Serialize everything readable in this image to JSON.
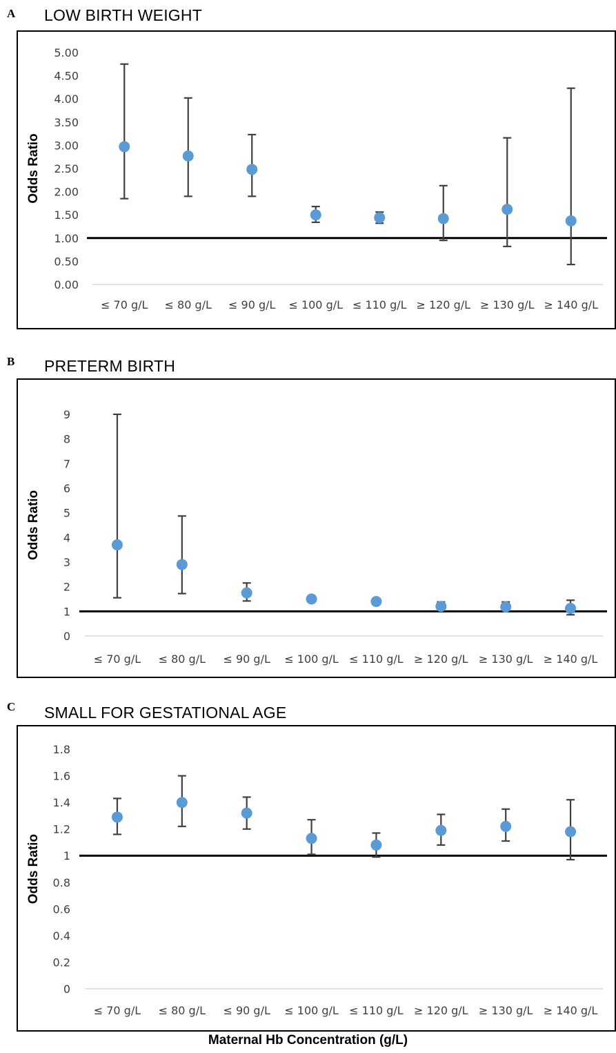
{
  "figure": {
    "xlabel": "Maternal Hb Concentration (g/L)"
  },
  "chart_data": [
    {
      "type": "scatter",
      "panel": "A",
      "title": "LOW BIRTH WEIGHT",
      "ylabel": "Odds Ratio",
      "ylim": [
        0,
        5
      ],
      "yticks": [
        "0.00",
        "0.50",
        "1.00",
        "1.50",
        "2.00",
        "2.50",
        "3.00",
        "3.50",
        "4.00",
        "4.50",
        "5.00"
      ],
      "categories": [
        "≤ 70 g/L",
        "≤ 80 g/L",
        "≤ 90 g/L",
        "≤ 100 g/L",
        "≤ 110 g/L",
        "≥ 120 g/L",
        "≥ 130 g/L",
        "≥ 140 g/L"
      ],
      "series": [
        {
          "values": [
            2.97,
            2.77,
            2.48,
            1.5,
            1.44,
            1.42,
            1.62,
            1.37
          ],
          "lower": [
            1.85,
            1.9,
            1.9,
            1.34,
            1.32,
            0.95,
            0.82,
            0.43
          ],
          "upper": [
            4.75,
            4.02,
            3.23,
            1.68,
            1.56,
            2.13,
            3.16,
            4.23
          ]
        }
      ],
      "reference_line": 1,
      "grid": false,
      "colors": {
        "marker": "#5b9bd5",
        "errorbar": "#404040",
        "reference": "#000000"
      }
    },
    {
      "type": "scatter",
      "panel": "B",
      "title": "PRETERM BIRTH",
      "ylabel": "Odds Ratio",
      "ylim": [
        0,
        9
      ],
      "yticks": [
        "0",
        "1",
        "2",
        "3",
        "4",
        "5",
        "6",
        "7",
        "8",
        "9"
      ],
      "categories": [
        "≤ 70 g/L",
        "≤ 80 g/L",
        "≤ 90 g/L",
        "≤ 100 g/L",
        "≤ 110 g/L",
        "≥ 120 g/L",
        "≥ 130 g/L",
        "≥ 140 g/L"
      ],
      "series": [
        {
          "values": [
            3.7,
            2.9,
            1.75,
            1.5,
            1.4,
            1.2,
            1.18,
            1.12
          ],
          "lower": [
            1.55,
            1.72,
            1.42,
            1.4,
            1.32,
            1.13,
            1.06,
            0.86
          ],
          "upper": [
            9.0,
            4.87,
            2.15,
            1.62,
            1.48,
            1.38,
            1.38,
            1.45
          ]
        }
      ],
      "reference_line": 1,
      "grid": false,
      "colors": {
        "marker": "#5b9bd5",
        "errorbar": "#404040",
        "reference": "#000000"
      }
    },
    {
      "type": "scatter",
      "panel": "C",
      "title": "SMALL FOR GESTATIONAL AGE",
      "ylabel": "Odds Ratio",
      "ylim": [
        0,
        1.8
      ],
      "yticks": [
        "0",
        "0.2",
        "0.4",
        "0.6",
        "0.8",
        "1",
        "1.2",
        "1.4",
        "1.6",
        "1.8"
      ],
      "categories": [
        "≤ 70 g/L",
        "≤ 80 g/L",
        "≤ 90 g/L",
        "≤ 100 g/L",
        "≤ 110 g/L",
        "≥ 120 g/L",
        "≥ 130 g/L",
        "≥ 140 g/L"
      ],
      "series": [
        {
          "values": [
            1.29,
            1.4,
            1.32,
            1.13,
            1.08,
            1.19,
            1.22,
            1.18
          ],
          "lower": [
            1.16,
            1.22,
            1.2,
            1.01,
            0.99,
            1.08,
            1.11,
            0.97
          ],
          "upper": [
            1.43,
            1.6,
            1.44,
            1.27,
            1.17,
            1.31,
            1.35,
            1.42
          ]
        }
      ],
      "reference_line": 1,
      "grid": false,
      "colors": {
        "marker": "#5b9bd5",
        "errorbar": "#404040",
        "reference": "#000000"
      }
    }
  ]
}
